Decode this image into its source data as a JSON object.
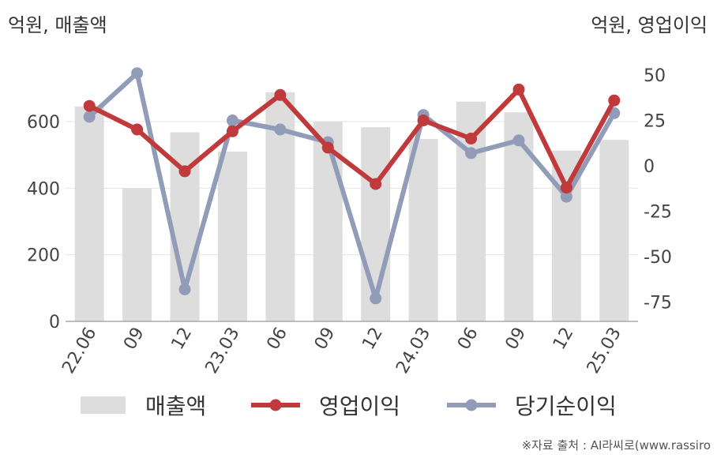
{
  "left_unit": "억원, 매출액",
  "right_unit": "억원, 영업이익",
  "source": "※자료 출처 : AI라씨로(www.rassiro",
  "chart_data": {
    "type": "bar",
    "categories": [
      "22.06",
      "09",
      "12",
      "23.03",
      "06",
      "09",
      "12",
      "24.03",
      "06",
      "09",
      "12",
      "25.03"
    ],
    "y_left": {
      "ylim": [
        0,
        750
      ],
      "ticks": [
        0,
        200,
        400,
        600
      ]
    },
    "y_right": {
      "ylim": [
        -85,
        60
      ],
      "ticks": [
        50,
        25,
        0,
        -25,
        -50,
        -75
      ]
    },
    "series": [
      {
        "name": "매출액",
        "type": "bar",
        "axis": "left",
        "color": "#dddddd",
        "values": [
          645,
          400,
          568,
          510,
          688,
          600,
          583,
          548,
          660,
          628,
          513,
          545
        ]
      },
      {
        "name": "영업이익",
        "type": "line",
        "axis": "right",
        "color": "#c0393b",
        "values": [
          33,
          20,
          -3,
          19,
          39,
          10,
          -10,
          25,
          15,
          42,
          -12,
          36
        ]
      },
      {
        "name": "당기순이익",
        "type": "line",
        "axis": "right",
        "color": "#909cb8",
        "values": [
          27,
          51,
          -68,
          25,
          20,
          13,
          -73,
          28,
          7,
          14,
          -17,
          29
        ]
      }
    ],
    "grid": true,
    "legend": "bottom"
  }
}
